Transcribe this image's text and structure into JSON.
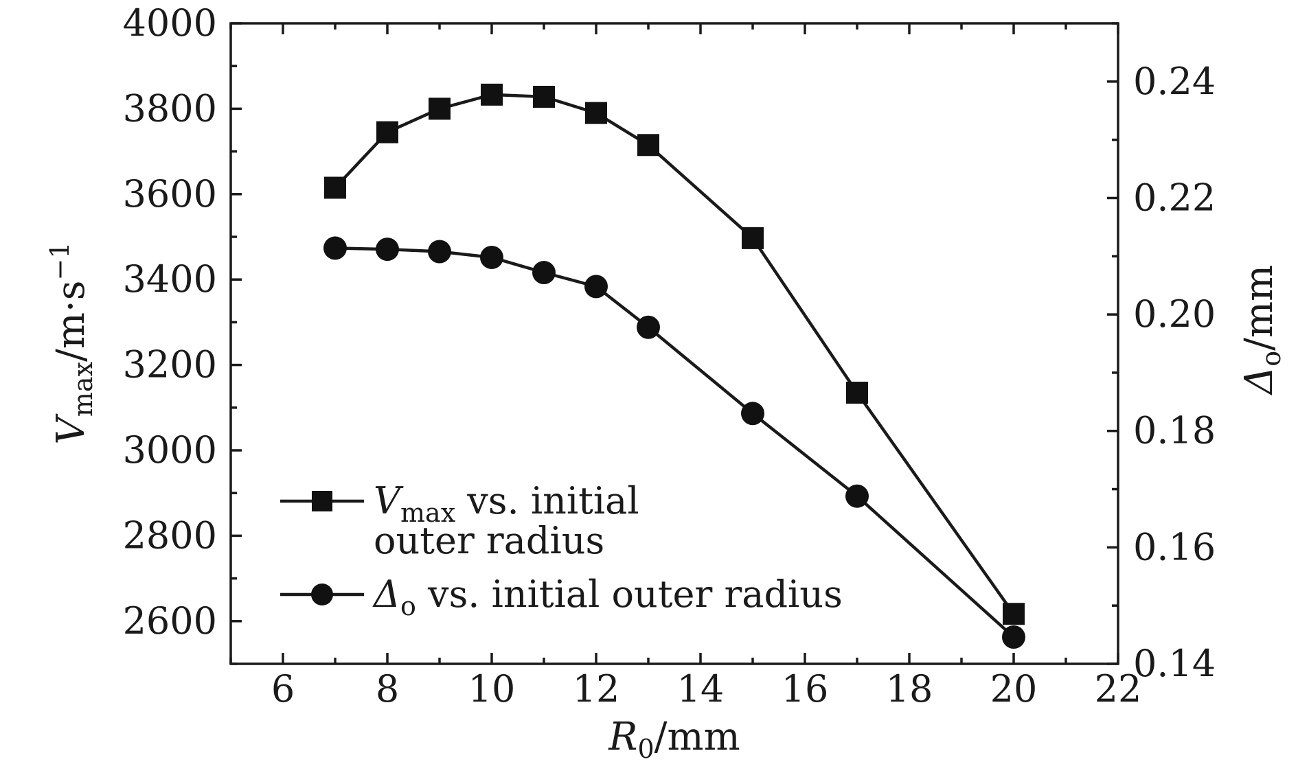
{
  "chart_data": {
    "type": "line",
    "x_axis": {
      "label_main": "R",
      "label_sub": "0",
      "label_unit": "/mm",
      "range": [
        5,
        22
      ],
      "ticks": [
        "6",
        "8",
        "10",
        "12",
        "14",
        "16",
        "18",
        "20",
        "22"
      ],
      "minor_step": 1
    },
    "y_left": {
      "label_main": "V",
      "label_sub": "max",
      "label_unit": "/m·s",
      "label_sup": "−1",
      "range": [
        2500,
        4000
      ],
      "ticks": [
        "2600",
        "2800",
        "3000",
        "3200",
        "3400",
        "3600",
        "3800",
        "4000"
      ],
      "minor_step": 100
    },
    "y_right": {
      "label_main": "Δ",
      "label_sub": "o",
      "label_unit": "/mm",
      "range": [
        0.14,
        0.25
      ],
      "ticks": [
        "0.14",
        "0.16",
        "0.18",
        "0.20",
        "0.22",
        "0.24"
      ],
      "minor_step": 0.01
    },
    "series": [
      {
        "name_main": "V",
        "name_sub": "max",
        "name_rest_line1": " vs. initial",
        "name_rest_line2": "outer radius",
        "marker": "square",
        "axis": "left",
        "x": [
          7,
          8,
          9,
          10,
          11,
          12,
          13,
          15,
          17,
          20
        ],
        "y": [
          3615,
          3745,
          3800,
          3833,
          3828,
          3790,
          3715,
          3497,
          3135,
          2617
        ]
      },
      {
        "name_main": "Δ",
        "name_sub": "o",
        "name_rest_line1": " vs. initial outer radius",
        "marker": "circle",
        "axis": "right",
        "x": [
          7,
          8,
          9,
          10,
          11,
          12,
          13,
          15,
          17,
          20
        ],
        "y": [
          0.2114,
          0.2112,
          0.2108,
          0.2098,
          0.2072,
          0.2048,
          0.1978,
          0.183,
          0.1688,
          0.1446
        ]
      }
    ],
    "legend_position": "bottom-left",
    "grid": false
  }
}
